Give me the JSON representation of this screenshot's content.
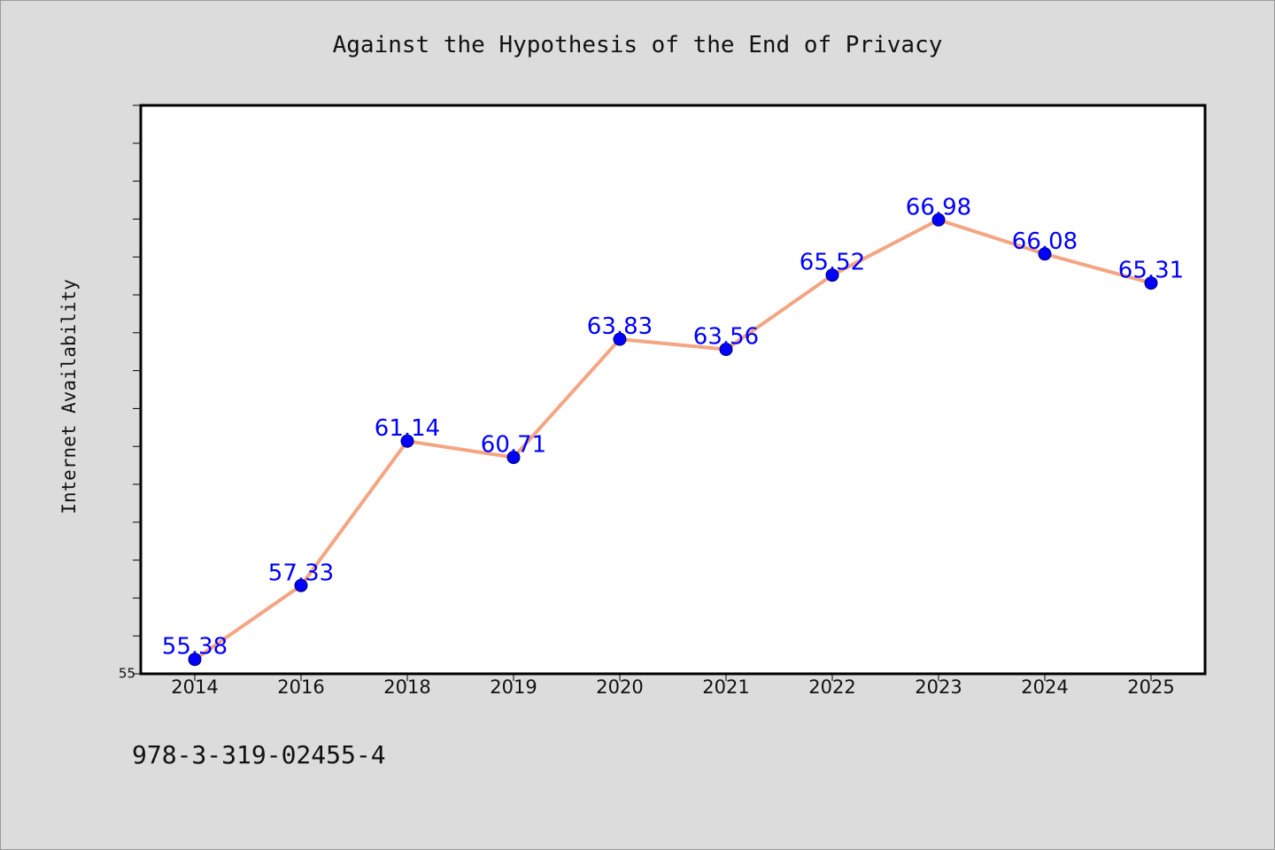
{
  "chart_data": {
    "type": "line",
    "title": "Against the Hypothesis of the End of Privacy",
    "xlabel": "",
    "ylabel": "Internet Availability",
    "categories": [
      "2014",
      "2016",
      "2018",
      "2019",
      "2020",
      "2021",
      "2022",
      "2023",
      "2024",
      "2025"
    ],
    "series": [
      {
        "values": [
          55.38,
          57.33,
          61.14,
          60.71,
          63.83,
          63.56,
          65.52,
          66.98,
          66.08,
          65.31
        ],
        "data_labels": [
          "55.38",
          "57.33",
          "61.14",
          "60.71",
          "63.83",
          "63.56",
          "65.52",
          "66.98",
          "66.08",
          "65.31"
        ]
      }
    ],
    "ylim": [
      55,
      70
    ],
    "y_tick_labels": [
      "55"
    ],
    "grid": false,
    "colors": {
      "line": "#f4a582",
      "marker": "#0000ff",
      "data_label": "#0000ff",
      "plot_background": "#ffffff",
      "page_background": "#dcdcdc"
    }
  },
  "footer": {
    "code": "978-3-319-02455-4"
  }
}
